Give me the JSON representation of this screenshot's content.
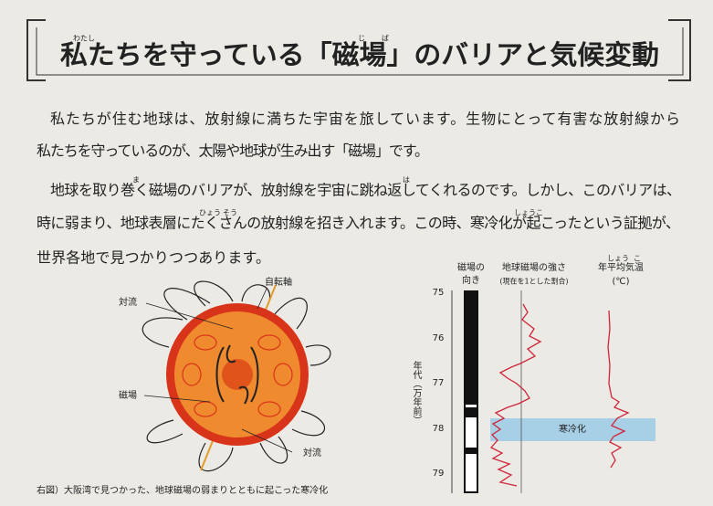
{
  "header": {
    "title": "私たちを守っている「磁場」のバリアと気候変動",
    "furigana": [
      "わたし",
      "じ",
      "ば"
    ]
  },
  "paragraphs": [
    [
      "私たちが住む地球は、放射線に満ちた宇宙を旅しています。生物にとって有害な放射線から",
      "私たちを守っているのが、太陽や地球が生み出す「磁場」です。"
    ],
    [
      "地球を取り巻く磁場のバリアが、放射線を宇宙に跳ね返してくれるのです。しかし、このバリアは、",
      "時に弱まり、地球表層にたくさんの放射線を招き入れます。この時、寒冷化が起こったという証拠が、",
      "世界各地で見つかりつつあります。"
    ]
  ],
  "paragraph_furigana": [
    "ま",
    "は",
    "ひょう",
    "そう",
    "しょうこ"
  ],
  "figure": {
    "labels": [
      "対流",
      "自転軸",
      "磁場",
      "対流"
    ],
    "caption": "右図）大阪湾で見つかった、地球磁場の弱まりとともに起こった寒冷化"
  },
  "chart": {
    "col1": [
      "磁場の",
      "向き"
    ],
    "col2": [
      "地球磁場の強さ",
      "(現在を1とした割合)"
    ],
    "col3": [
      "年平均気温",
      "(℃)"
    ],
    "col3_furigana": [
      "しょう",
      "こ"
    ],
    "axis_label": "年代（万年前）",
    "years": [
      75,
      76,
      77,
      78,
      79
    ],
    "band_label": "寒冷化"
  }
}
